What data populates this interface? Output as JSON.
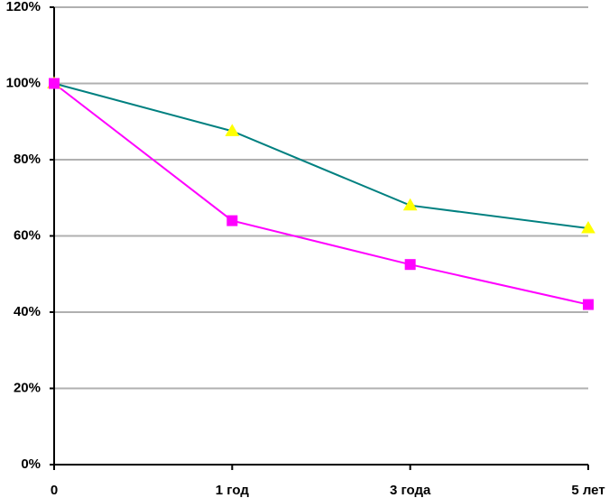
{
  "chart_data": {
    "type": "line",
    "categories": [
      "0",
      "1 год",
      "3 года",
      "5 лет"
    ],
    "series": [
      {
        "color": "#008080",
        "marker": "triangle",
        "marker_color": "#ffff00",
        "values": [
          100,
          87.5,
          68,
          62
        ]
      },
      {
        "color": "#ff00ff",
        "marker": "square",
        "marker_color": "#ff00ff",
        "values": [
          100,
          64,
          52.5,
          42
        ]
      }
    ],
    "ylim": [
      0,
      120
    ],
    "yticks": [
      {
        "value": 0,
        "label": "0%"
      },
      {
        "value": 20,
        "label": "20%"
      },
      {
        "value": 40,
        "label": "40%"
      },
      {
        "value": 60,
        "label": "60%"
      },
      {
        "value": 80,
        "label": "80%"
      },
      {
        "value": 100,
        "label": "100%"
      },
      {
        "value": 120,
        "label": "120%"
      }
    ],
    "grid": true
  }
}
